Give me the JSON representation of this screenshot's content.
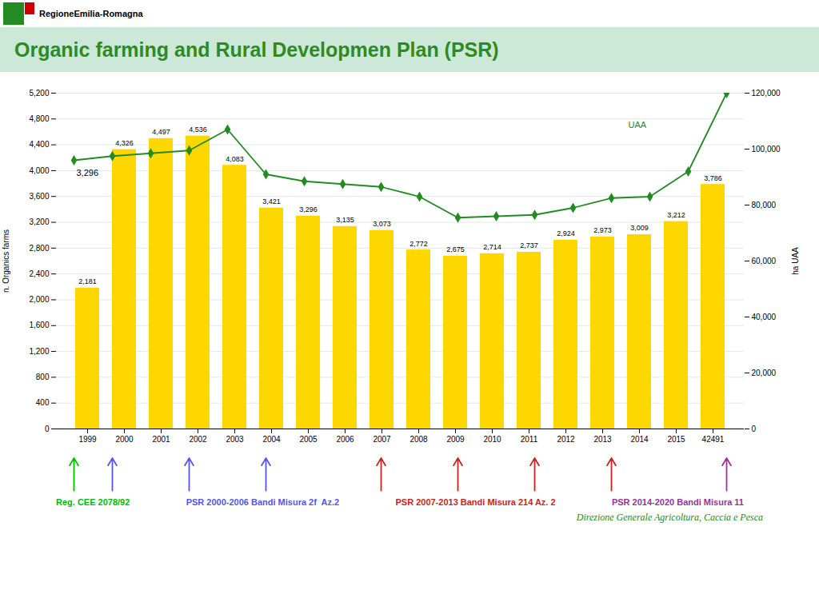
{
  "chart_data": {
    "type": "bar",
    "title": "Organic farming and Rural Developmen Plan (PSR)",
    "logo_text": "RegioneEmilia-Romagna",
    "footer": "Direzione Generale Agricoltura, Caccia e Pesca",
    "categories": [
      "1999",
      "2000",
      "2001",
      "2002",
      "2003",
      "2004",
      "2005",
      "2006",
      "2007",
      "2008",
      "2009",
      "2010",
      "2011",
      "2012",
      "2013",
      "2014",
      "2015",
      "42491"
    ],
    "series": [
      {
        "type": "bar",
        "color": "#FFD700",
        "values": [
          2181,
          4326,
          4497,
          4536,
          4083,
          3421,
          3296,
          3135,
          3073,
          2772,
          2675,
          2714,
          2737,
          2924,
          2973,
          3009,
          3212,
          3786
        ],
        "value_labels": [
          "2,181",
          "4,326",
          "4,497",
          "4,536",
          "4,083",
          "3,421",
          "3,296",
          "3,135",
          "3,073",
          "2,772",
          "2,675",
          "2,714",
          "2,737",
          "2,924",
          "2,973",
          "3,009",
          "3,212",
          "3,786"
        ],
        "data_labels": true
      },
      {
        "type": "line",
        "axis": "y2",
        "color": "#228B22",
        "marker": "diamond",
        "values": [
          96000,
          97500,
          98500,
          99500,
          107000,
          91000,
          88500,
          87500,
          86500,
          83000,
          75500,
          76000,
          76500,
          79000,
          82500,
          83000,
          92000,
          120000
        ]
      }
    ],
    "ylabel": "n. Organics farms",
    "y2label": "ha UAA",
    "ylim": [
      0,
      5200
    ],
    "yticks": [
      0,
      400,
      800,
      {
        "value": 1200,
        "label": "1,200"
      },
      {
        "value": 1600,
        "label": "1,600"
      },
      {
        "value": 2000,
        "label": "2,000"
      },
      {
        "value": 2400,
        "label": "2,400"
      },
      {
        "value": 2800,
        "label": "2,800"
      },
      {
        "value": 3200,
        "label": "3,200"
      },
      {
        "value": 3600,
        "label": "3,600"
      },
      {
        "value": 4000,
        "label": "4,000"
      },
      {
        "value": 4400,
        "label": "4,400"
      },
      {
        "value": 4800,
        "label": "4,800"
      },
      {
        "value": 5200,
        "label": "5,200"
      }
    ],
    "y2lim": [
      0,
      120000
    ],
    "y2ticks": [
      0,
      {
        "value": 20000,
        "label": "20,000"
      },
      {
        "value": 40000,
        "label": "40,000"
      },
      {
        "value": 60000,
        "label": "60,000"
      },
      {
        "value": 80000,
        "label": "80,000"
      },
      {
        "value": 100000,
        "label": "100,000"
      },
      {
        "value": 120000,
        "label": "120,000"
      }
    ],
    "grid": true,
    "annotations": [
      {
        "text": "UAA",
        "x": "2014",
        "y": 4700,
        "color": "#228B22"
      },
      {
        "text": "3,296",
        "x": "1999",
        "y": 3960
      }
    ],
    "periods": [
      {
        "label": "Reg. CEE 2078/92",
        "color": "#00BB00",
        "categories": [
          "1999"
        ]
      },
      {
        "label": "PSR 2000-2006 Bandi Misura 2f  Az.2",
        "color": "#5555EE",
        "categories": [
          "2000",
          "2002",
          "2004"
        ]
      },
      {
        "label": "PSR 2007-2013 Bandi Misura 214 Az. 2",
        "color": "#CC2222",
        "categories": [
          "2007",
          "2009",
          "2011",
          "2013"
        ]
      },
      {
        "label": "PSR 2014-2020 Bandi Misura 11",
        "color": "#993399",
        "categories": [
          "42491"
        ]
      }
    ]
  }
}
